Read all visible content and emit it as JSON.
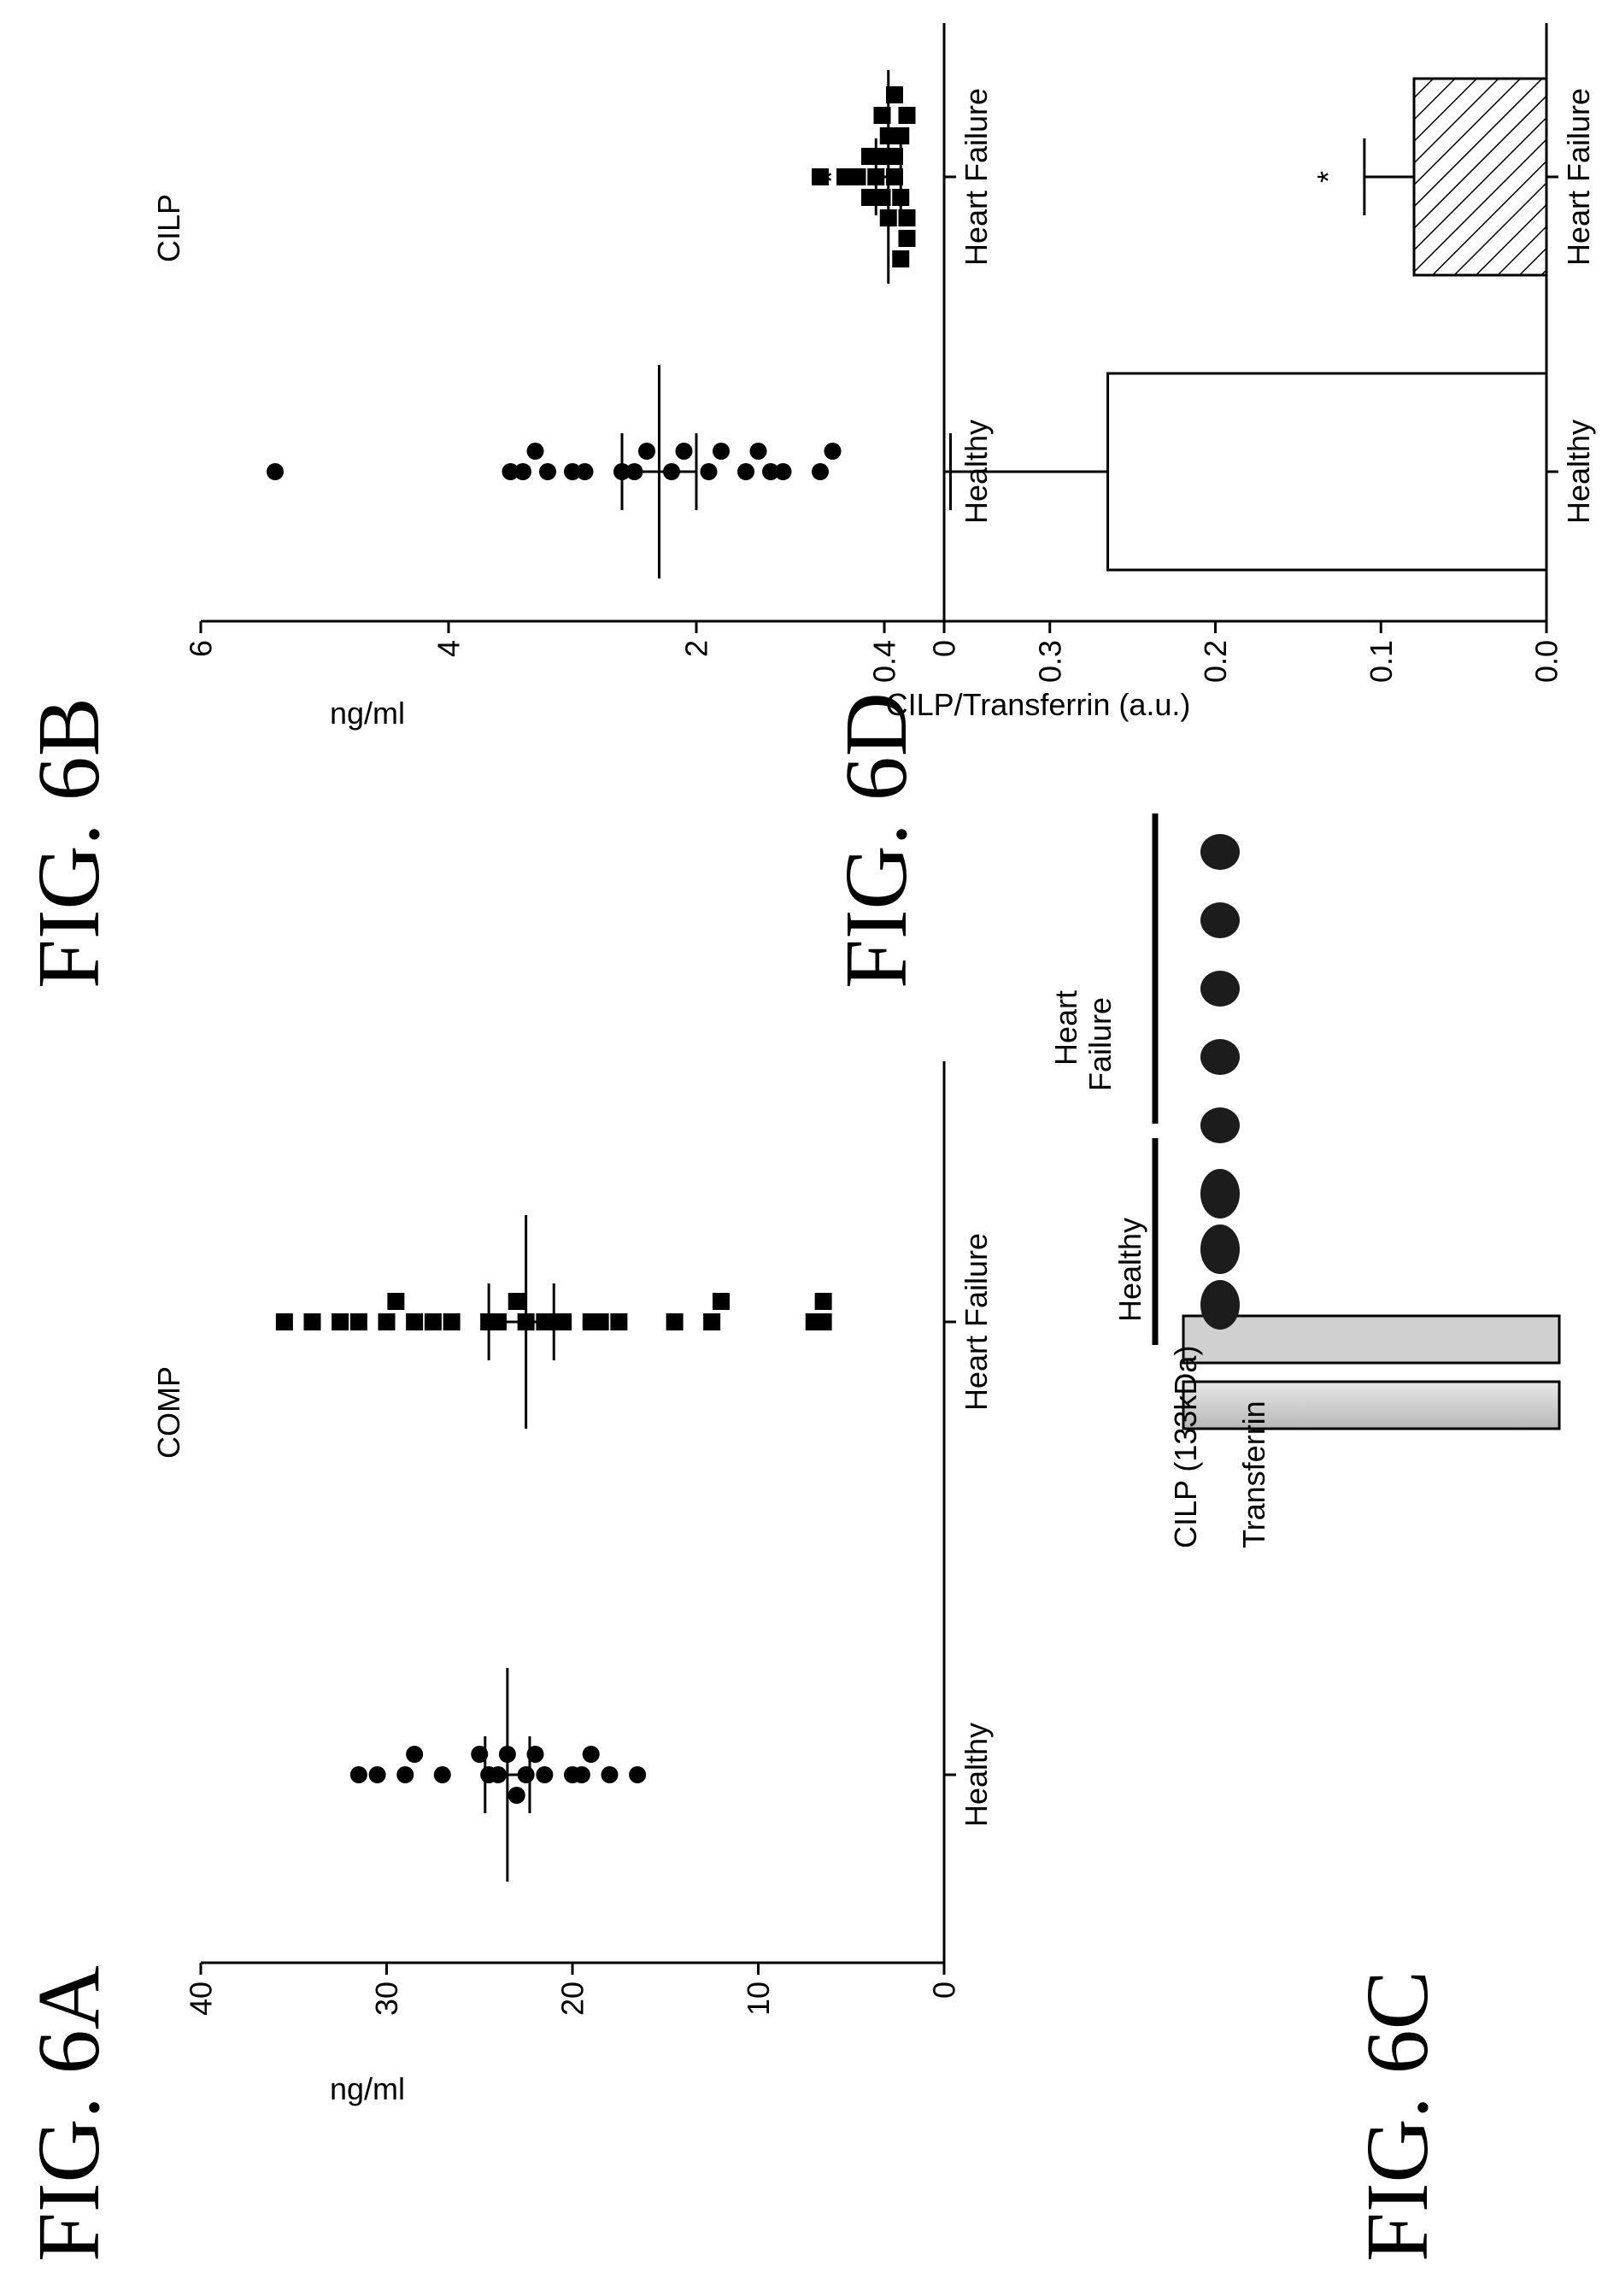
{
  "figures": {
    "fig6a": "FIG. 6A",
    "fig6b": "FIG. 6B",
    "fig6c": "FIG. 6C",
    "fig6d": "FIG. 6D"
  },
  "blot": {
    "groups": [
      "Healthy",
      "Heart Failure"
    ],
    "bands": [
      "CILP (133kDa)",
      "Transferrin"
    ]
  },
  "chart_data": [
    {
      "id": "6A",
      "type": "scatter",
      "title": "COMP",
      "ylabel": "ng/ml",
      "ylim": [
        0,
        40
      ],
      "yticks": [
        0,
        10,
        20,
        30,
        40
      ],
      "categories": [
        "Healthy",
        "Heart Failure"
      ],
      "series": [
        {
          "name": "Healthy",
          "marker": "circle",
          "values": [
            22.5,
            24.5,
            29.0,
            30.5,
            31.5,
            28.5,
            27.0,
            25.0,
            24.0,
            23.5,
            22.0,
            21.5,
            20.0,
            19.5,
            19.0,
            18.0,
            16.5,
            23.0
          ],
          "mean": 23.5,
          "sem_low": 22.3,
          "sem_high": 24.7
        },
        {
          "name": "Heart Failure",
          "marker": "square",
          "values": [
            35.5,
            34.0,
            32.5,
            31.5,
            30.0,
            29.5,
            28.5,
            27.5,
            26.5,
            24.5,
            22.5,
            21.5,
            20.5,
            19.0,
            17.5,
            14.5,
            12.5,
            12.0,
            7.0,
            6.5,
            6.5,
            24.0,
            23.0,
            18.5
          ],
          "mean": 22.5,
          "sem_low": 21.0,
          "sem_high": 24.5
        }
      ]
    },
    {
      "id": "6B",
      "type": "scatter",
      "title": "CILP",
      "ylabel": "ng/ml",
      "ylim": [
        0,
        6
      ],
      "yticks": [
        0,
        2,
        4,
        6
      ],
      "categories": [
        "Healthy",
        "Heart Failure"
      ],
      "annotation": "*",
      "series": [
        {
          "name": "Healthy",
          "marker": "circle",
          "values": [
            5.4,
            3.5,
            3.4,
            3.3,
            3.2,
            2.9,
            2.5,
            2.4,
            2.2,
            2.1,
            1.9,
            1.8,
            1.6,
            1.4,
            1.3,
            1.0,
            0.9,
            3.0,
            2.6,
            1.5
          ],
          "mean": 2.3,
          "sem_low": 2.0,
          "sem_high": 2.6
        },
        {
          "name": "Heart Failure",
          "marker": "square",
          "values": [
            1.0,
            0.8,
            0.7,
            0.6,
            0.55,
            0.5,
            0.5,
            0.45,
            0.45,
            0.4,
            0.4,
            0.35,
            0.35,
            0.3,
            0.3,
            0.3,
            0.6,
            0.5,
            0.4,
            0.35
          ],
          "mean": 0.45,
          "sem_low": 0.35,
          "sem_high": 0.55
        }
      ]
    },
    {
      "id": "6D",
      "type": "bar",
      "ylabel": "CILP/Transferrin (a.u.)",
      "ylim": [
        0,
        0.4
      ],
      "yticks": [
        "0.0",
        "0.1",
        "0.2",
        "0.3",
        "0.4"
      ],
      "categories": [
        "Healthy",
        "Heart Failure"
      ],
      "values": [
        0.265,
        0.08
      ],
      "errors": [
        0.095,
        0.03
      ],
      "patterns": [
        "solid-white",
        "diagonal-hatch"
      ],
      "annotation": "*"
    }
  ]
}
